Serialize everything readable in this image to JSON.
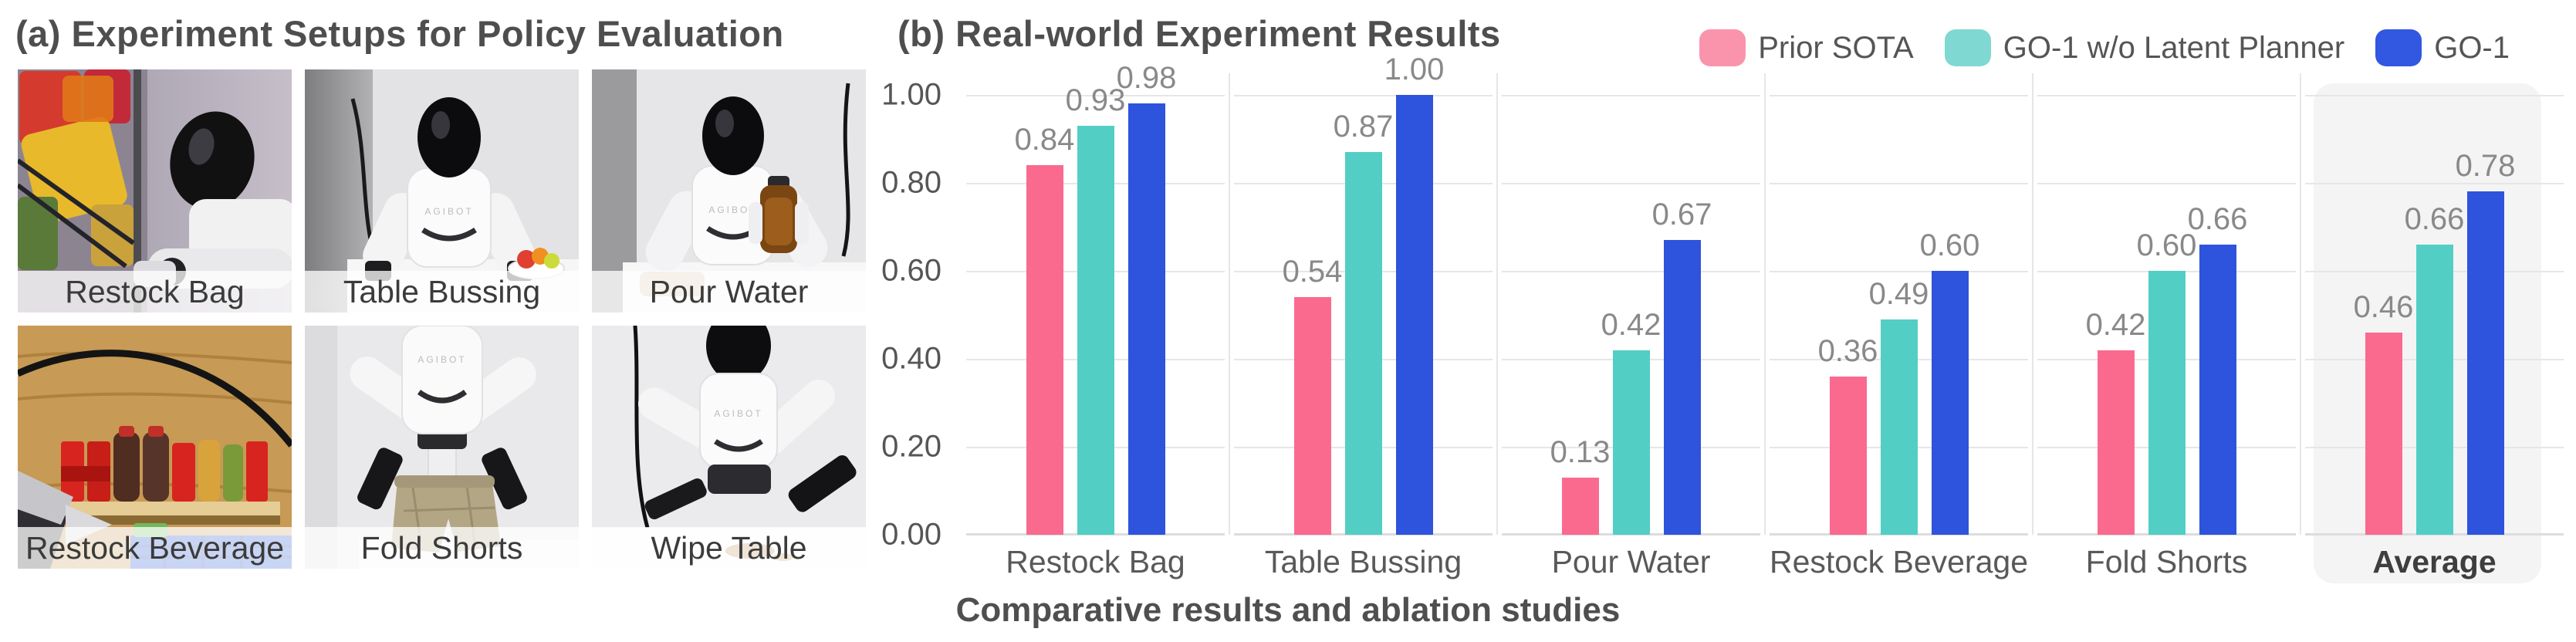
{
  "panel_a": {
    "title": "(a) Experiment Setups for Policy Evaluation",
    "robot_brand": "AGIBOT",
    "photos": [
      {
        "label": "Restock Bag"
      },
      {
        "label": "Table Bussing"
      },
      {
        "label": "Pour Water"
      },
      {
        "label": "Restock Beverage"
      },
      {
        "label": "Fold Shorts"
      },
      {
        "label": "Wipe Table"
      }
    ]
  },
  "panel_b": {
    "title": "(b) Real-world Experiment Results",
    "caption": "Comparative results and ablation studies",
    "legend": [
      {
        "label": "Prior SOTA",
        "swatch_color": "#fa94ac"
      },
      {
        "label": "GO-1 w/o Latent Planner",
        "swatch_color": "#7fd9d2"
      },
      {
        "label": "GO-1",
        "swatch_color": "#3257e1"
      }
    ]
  },
  "chart_data": {
    "type": "bar",
    "title": "(b) Real-world Experiment Results",
    "categories": [
      "Restock Bag",
      "Table Bussing",
      "Pour Water",
      "Restock Beverage",
      "Fold Shorts",
      "Average"
    ],
    "series": [
      {
        "name": "Prior SOTA",
        "color": "#fa6a8e",
        "values": [
          0.84,
          0.54,
          0.13,
          0.36,
          0.42,
          0.46
        ]
      },
      {
        "name": "GO-1 w/o Latent Planner",
        "color": "#53cec5",
        "values": [
          0.93,
          0.87,
          0.42,
          0.49,
          0.6,
          0.66
        ]
      },
      {
        "name": "GO-1",
        "color": "#2e53dc",
        "values": [
          0.98,
          1.0,
          0.67,
          0.6,
          0.66,
          0.78
        ]
      }
    ],
    "y_ticks": [
      "1.00",
      "0.80",
      "0.60",
      "0.40",
      "0.20",
      "0.00"
    ],
    "ylim": [
      0,
      1.0
    ],
    "grid": true,
    "value_labels": true,
    "legend_position": "top-right",
    "highlight_category": "Average",
    "xlabel": "",
    "ylabel": ""
  }
}
